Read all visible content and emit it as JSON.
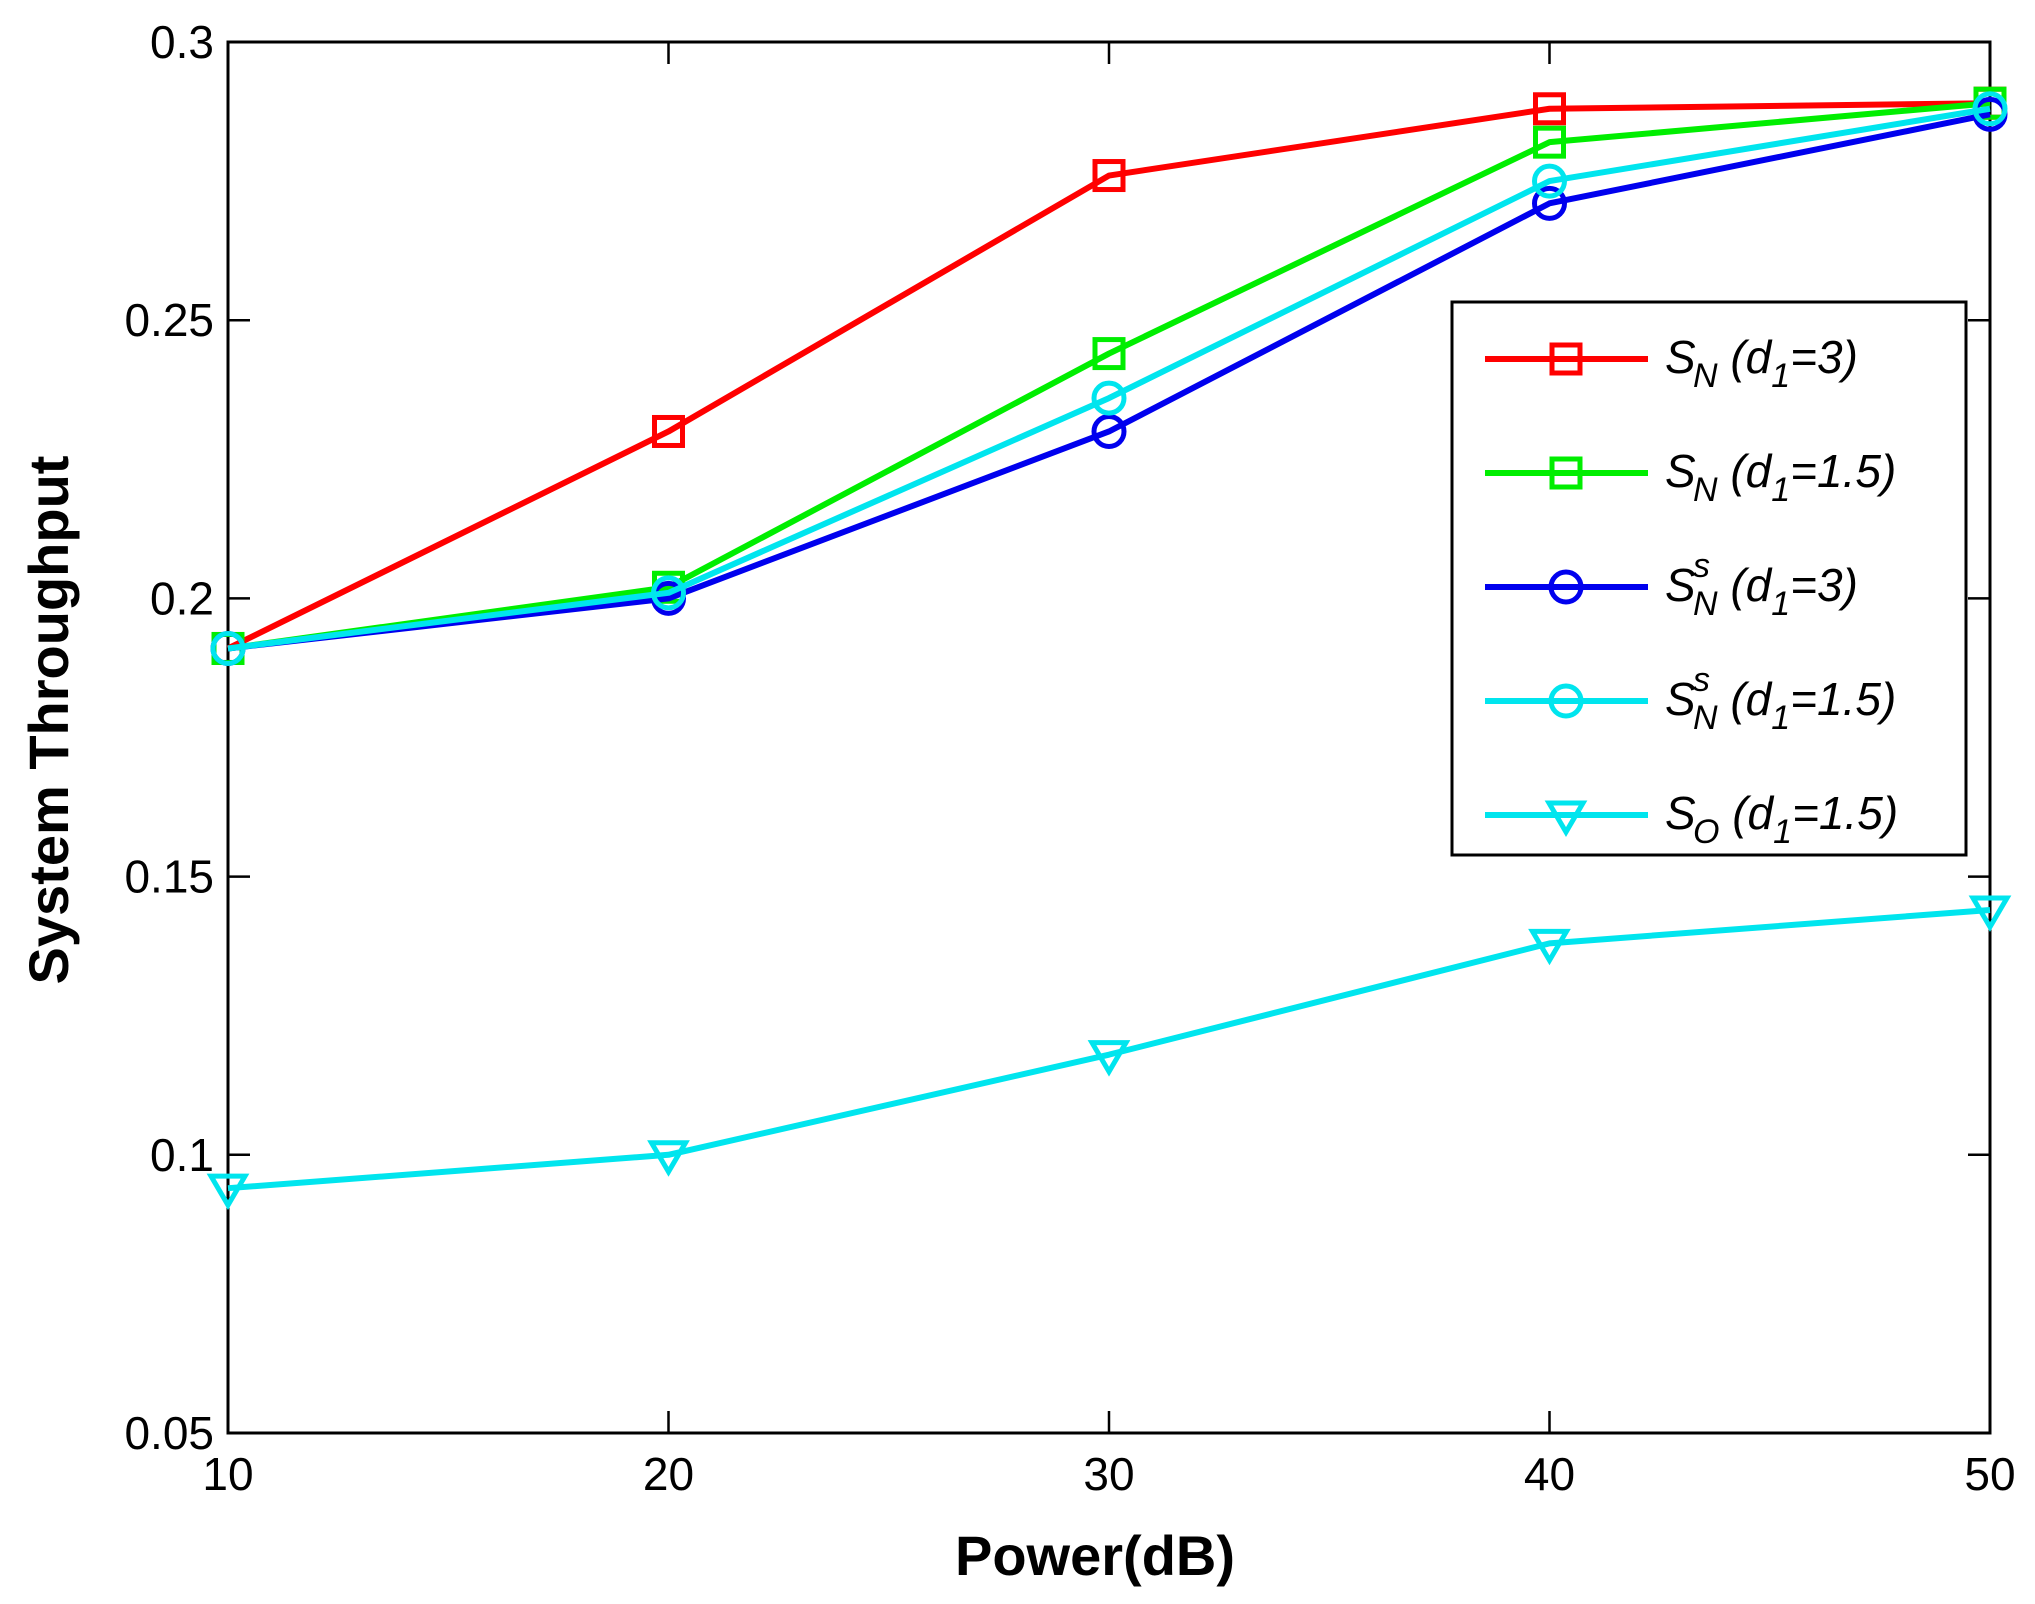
{
  "chart_data": {
    "type": "line",
    "title": "",
    "xlabel": "Power(dB)",
    "ylabel": "System Throughput",
    "xlim": [
      10,
      50
    ],
    "ylim": [
      0.05,
      0.3
    ],
    "x": [
      10,
      20,
      30,
      40,
      50
    ],
    "xticks": [
      10,
      20,
      30,
      40,
      50
    ],
    "xtick_labels": [
      "10",
      "20",
      "30",
      "40",
      "50"
    ],
    "yticks": [
      0.05,
      0.1,
      0.15,
      0.2,
      0.25,
      0.3
    ],
    "ytick_labels": [
      "0.05",
      "0.1",
      "0.15",
      "0.2",
      "0.25",
      "0.3"
    ],
    "grid": false,
    "legend_position": "top-right",
    "series": [
      {
        "name": "S_N (d_1=3)",
        "legend": {
          "base": "S",
          "sub": "N",
          "sup": "",
          "pre": " (d",
          "pre_sub": "1",
          "post": "=3)"
        },
        "color": "#ff0000",
        "marker": "square",
        "values": [
          0.191,
          0.23,
          0.276,
          0.288,
          0.289
        ]
      },
      {
        "name": "S_N (d_1=1.5)",
        "legend": {
          "base": "S",
          "sub": "N",
          "sup": "",
          "pre": " (d",
          "pre_sub": "1",
          "post": "=1.5)"
        },
        "color": "#00ee00",
        "marker": "square",
        "values": [
          0.191,
          0.202,
          0.244,
          0.282,
          0.289
        ]
      },
      {
        "name": "S_N^s (d_1=3)",
        "legend": {
          "base": "S",
          "sub": "N",
          "sup": "s",
          "pre": " (d",
          "pre_sub": "1",
          "post": "=3)"
        },
        "color": "#0000ee",
        "marker": "circle",
        "values": [
          0.191,
          0.2,
          0.23,
          0.271,
          0.287
        ]
      },
      {
        "name": "S_N^s (d_1=1.5)",
        "legend": {
          "base": "S",
          "sub": "N",
          "sup": "s",
          "pre": " (d",
          "pre_sub": "1",
          "post": "=1.5)"
        },
        "color": "#00e5ee",
        "marker": "circle",
        "values": [
          0.191,
          0.201,
          0.236,
          0.275,
          0.288
        ]
      },
      {
        "name": "S_O (d_1=1.5)",
        "legend": {
          "base": "S",
          "sub": "O",
          "sup": "",
          "pre": " (d",
          "pre_sub": "1",
          "post": "=1.5)"
        },
        "color": "#00e5ee",
        "marker": "triangle-down",
        "values": [
          0.094,
          0.1,
          0.118,
          0.138,
          0.144
        ]
      }
    ]
  }
}
